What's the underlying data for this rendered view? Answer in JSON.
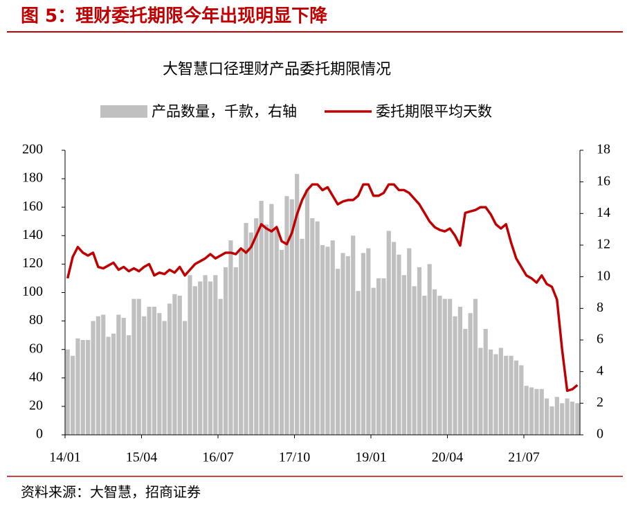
{
  "header": {
    "title": "图 5：理财委托期限今年出现明显下降"
  },
  "source": "资料来源：大智慧，招商证券",
  "chart_data": {
    "type": "bar",
    "title": "大智慧口径理财产品委托期限情况",
    "categories": [
      "14/01",
      null,
      null,
      null,
      null,
      null,
      null,
      null,
      null,
      null,
      null,
      null,
      null,
      null,
      null,
      "15/04",
      null,
      null,
      null,
      null,
      null,
      null,
      null,
      null,
      null,
      null,
      null,
      null,
      null,
      null,
      "16/07",
      null,
      null,
      null,
      null,
      null,
      null,
      null,
      null,
      null,
      null,
      null,
      null,
      null,
      null,
      "17/10",
      null,
      null,
      null,
      null,
      null,
      null,
      null,
      null,
      null,
      null,
      null,
      null,
      null,
      null,
      "19/01",
      null,
      null,
      null,
      null,
      null,
      null,
      null,
      null,
      null,
      null,
      null,
      null,
      null,
      null,
      "20/04",
      null,
      null,
      null,
      null,
      null,
      null,
      null,
      null,
      null,
      null,
      null,
      null,
      null,
      null,
      "21/07",
      null,
      null,
      null,
      null,
      null,
      null,
      null,
      null,
      null,
      null
    ],
    "series": [
      {
        "name": "产品数量，千款，右轴",
        "type": "bar",
        "axis": "y2",
        "color": "#c0c0c0",
        "values": [
          5.4,
          5.0,
          6.1,
          6.0,
          6.0,
          7.2,
          7.5,
          7.6,
          6.2,
          6.4,
          7.6,
          7.4,
          6.3,
          8.6,
          8.6,
          7.5,
          8.1,
          8.1,
          7.7,
          7.2,
          8.3,
          8.9,
          8.8,
          7.2,
          10.1,
          9.4,
          9.7,
          10.1,
          9.7,
          10.1,
          8.6,
          10.6,
          12.3,
          10.6,
          11.7,
          13.4,
          12.8,
          13.7,
          14.8,
          13.3,
          14.6,
          13.1,
          11.7,
          15.1,
          14.9,
          16.5,
          12.4,
          15.5,
          13.7,
          13.5,
          12.0,
          11.9,
          12.3,
          10.5,
          11.5,
          11.3,
          12.6,
          9.1,
          11.5,
          11.8,
          9.3,
          9.9,
          9.9,
          12.9,
          12.2,
          11.4,
          10.1,
          11.8,
          9.4,
          10.6,
          8.8,
          10.8,
          9.2,
          8.8,
          8.6,
          8.6,
          7.5,
          8.1,
          6.7,
          7.7,
          8.6,
          5.5,
          6.7,
          5.4,
          5.1,
          5.5,
          5.0,
          5.0,
          4.7,
          4.4,
          3.1,
          3.0,
          2.9,
          2.9,
          2.3,
          1.8,
          2.4,
          2.0,
          2.3,
          2.1,
          2.0
        ]
      },
      {
        "name": "委托期限平均天数",
        "type": "line",
        "color": "#c00000",
        "values": [
          110,
          125,
          132,
          128,
          126,
          128,
          118,
          117,
          119,
          121,
          116,
          118,
          115,
          117,
          115,
          118,
          120,
          112,
          114,
          113,
          116,
          114,
          118,
          112,
          116,
          120,
          122,
          124,
          127,
          124,
          126,
          128,
          128,
          127,
          131,
          128,
          132,
          140,
          148,
          145,
          143,
          146,
          136,
          134,
          142,
          155,
          165,
          172,
          176,
          176,
          172,
          174,
          168,
          162,
          164,
          165,
          165,
          168,
          176,
          176,
          168,
          168,
          170,
          176,
          176,
          172,
          172,
          170,
          166,
          162,
          156,
          150,
          146,
          144,
          143,
          145,
          140,
          133,
          156,
          157,
          158,
          160,
          160,
          155,
          148,
          145,
          148,
          135,
          124,
          118,
          112,
          110,
          107,
          112,
          106,
          104,
          95,
          60,
          31,
          32,
          35
        ]
      }
    ],
    "ylim": [
      0,
      200
    ],
    "yticks": [
      0,
      20,
      40,
      60,
      80,
      100,
      120,
      140,
      160,
      180,
      200
    ],
    "y2lim": [
      0,
      18
    ],
    "y2ticks": [
      0,
      2,
      4,
      6,
      8,
      10,
      12,
      14,
      16,
      18
    ],
    "legend": "top"
  }
}
